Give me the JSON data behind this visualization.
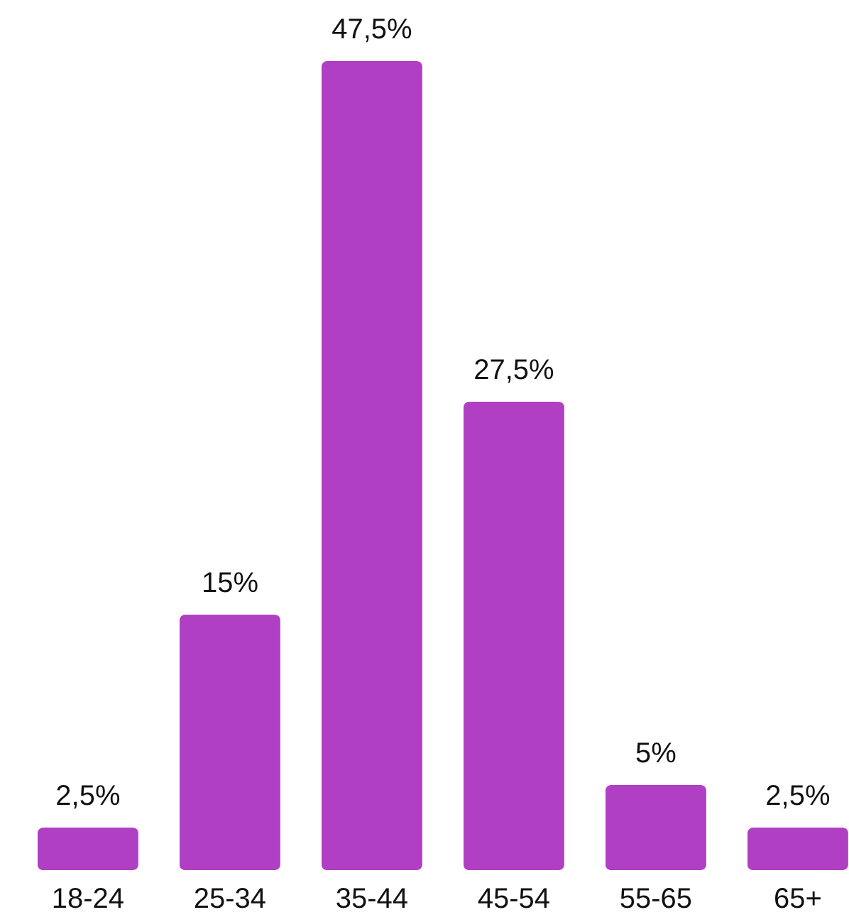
{
  "chart_data": {
    "type": "bar",
    "categories": [
      "18-24",
      "25-34",
      "35-44",
      "45-54",
      "55-65",
      "65+"
    ],
    "values": [
      2.5,
      15,
      47.5,
      27.5,
      5,
      2.5
    ],
    "value_labels": [
      "2,5%",
      "15%",
      "47,5%",
      "27,5%",
      "5%",
      "2,5%"
    ],
    "color": "#b03fc4"
  }
}
